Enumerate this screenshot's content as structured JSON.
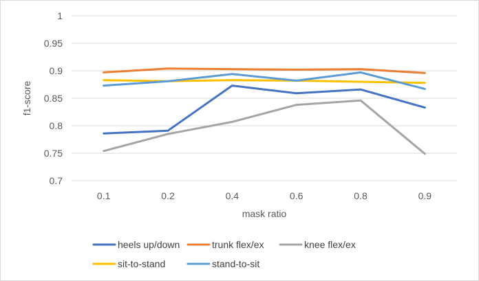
{
  "chart_data": {
    "type": "line",
    "title": "",
    "xlabel": "mask ratio",
    "ylabel": "f1-score",
    "categories": [
      "0.1",
      "0.2",
      "0.4",
      "0.6",
      "0.8",
      "0.9"
    ],
    "ylim": [
      0.7,
      1.0
    ],
    "yticks": [
      "0.7",
      "0.75",
      "0.8",
      "0.85",
      "0.9",
      "0.95",
      "1"
    ],
    "grid": true,
    "legend_position": "bottom",
    "series": [
      {
        "name": "heels up/down",
        "color": "#4472C4",
        "values": [
          0.786,
          0.791,
          0.873,
          0.859,
          0.866,
          0.833
        ]
      },
      {
        "name": "trunk flex/ex",
        "color": "#ED7D31",
        "values": [
          0.897,
          0.904,
          0.903,
          0.902,
          0.903,
          0.896
        ]
      },
      {
        "name": "knee flex/ex",
        "color": "#A5A5A5",
        "values": [
          0.754,
          0.785,
          0.807,
          0.838,
          0.846,
          0.749
        ]
      },
      {
        "name": "sit-to-stand",
        "color": "#FFC000",
        "values": [
          0.883,
          0.881,
          0.883,
          0.882,
          0.88,
          0.878
        ]
      },
      {
        "name": "stand-to-sit",
        "color": "#5B9BD5",
        "values": [
          0.873,
          0.881,
          0.894,
          0.882,
          0.897,
          0.867
        ]
      }
    ]
  }
}
